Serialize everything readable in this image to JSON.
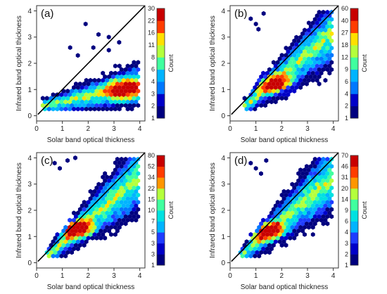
{
  "chart_data": [
    {
      "type": "heatmap",
      "panel_label": "(a)",
      "xlabel": "Solar band optical thickness",
      "ylabel": "Infrared band optical thickness",
      "xlim": [
        0,
        4.2
      ],
      "ylim": [
        -0.2,
        4.2
      ],
      "xticks": [
        0,
        1,
        2,
        3,
        4
      ],
      "yticks": [
        0,
        1,
        2,
        3,
        4
      ],
      "colorbar_title": "Count",
      "colorbar_ticks": [
        "1",
        "2",
        "3",
        "4",
        "6",
        "8",
        "11",
        "16",
        "22",
        "30"
      ],
      "x_range": [
        0.2,
        4.0
      ],
      "band_slope": 0.22,
      "band_intercept": 0.3,
      "band_width": [
        0.25,
        0.85
      ],
      "hot_center": [
        3.4,
        1.0
      ],
      "outliers": [
        [
          1.9,
          3.5
        ],
        [
          2.4,
          3.1
        ],
        [
          2.8,
          3.0
        ],
        [
          1.3,
          2.6
        ],
        [
          2.2,
          2.6
        ],
        [
          3.2,
          2.8
        ],
        [
          1.6,
          2.3
        ],
        [
          2.8,
          2.5
        ]
      ],
      "grid": false,
      "legend": "right"
    },
    {
      "type": "heatmap",
      "panel_label": "(b)",
      "xlabel": "Solar band optical thickness",
      "ylabel": "Infrared band optical thickness",
      "xlim": [
        0,
        4.2
      ],
      "ylim": [
        -0.2,
        4.2
      ],
      "xticks": [
        0,
        1,
        2,
        3,
        4
      ],
      "yticks": [
        0,
        1,
        2,
        3,
        4
      ],
      "colorbar_title": "Count",
      "colorbar_ticks": [
        "1",
        "2",
        "4",
        "6",
        "9",
        "12",
        "18",
        "27",
        "40",
        "60"
      ],
      "x_range": [
        0.5,
        4.0
      ],
      "band_slope": 0.82,
      "band_intercept": -0.1,
      "band_width": [
        0.3,
        1.3
      ],
      "hot_center": [
        1.8,
        1.2
      ],
      "outliers": [
        [
          0.8,
          3.7
        ],
        [
          1.0,
          3.5
        ],
        [
          1.1,
          3.3
        ],
        [
          1.3,
          3.9
        ]
      ],
      "grid": false,
      "legend": "right"
    },
    {
      "type": "heatmap",
      "panel_label": "(c)",
      "xlabel": "Solar band optical thickness",
      "ylabel": "Infrared band optical thickness",
      "xlim": [
        0,
        4.2
      ],
      "ylim": [
        -0.2,
        4.2
      ],
      "xticks": [
        0,
        1,
        2,
        3,
        4
      ],
      "yticks": [
        0,
        1,
        2,
        3,
        4
      ],
      "colorbar_title": "Count",
      "colorbar_ticks": [
        "1",
        "3",
        "3",
        "5",
        "7",
        "10",
        "15",
        "22",
        "34",
        "52",
        "80"
      ],
      "x_range": [
        0.4,
        4.0
      ],
      "band_slope": 0.85,
      "band_intercept": -0.1,
      "band_width": [
        0.3,
        1.4
      ],
      "hot_center": [
        1.5,
        1.3
      ],
      "outliers": [
        [
          0.7,
          3.8
        ],
        [
          0.9,
          3.6
        ],
        [
          1.2,
          3.9
        ],
        [
          1.5,
          4.0
        ]
      ],
      "grid": false,
      "legend": "right"
    },
    {
      "type": "heatmap",
      "panel_label": "(d)",
      "xlabel": "Solar band optical thickness",
      "ylabel": "Infrared band optical thickness",
      "xlim": [
        0,
        4.2
      ],
      "ylim": [
        -0.2,
        4.2
      ],
      "xticks": [
        0,
        1,
        2,
        3,
        4
      ],
      "yticks": [
        0,
        1,
        2,
        3,
        4
      ],
      "colorbar_title": "Count",
      "colorbar_ticks": [
        "1",
        "2",
        "3",
        "4",
        "6",
        "9",
        "14",
        "20",
        "31",
        "46",
        "70"
      ],
      "x_range": [
        0.4,
        4.0
      ],
      "band_slope": 0.85,
      "band_intercept": -0.1,
      "band_width": [
        0.3,
        1.4
      ],
      "hot_center": [
        1.4,
        1.2
      ],
      "outliers": [
        [
          0.8,
          3.8
        ],
        [
          1.0,
          3.6
        ],
        [
          1.2,
          3.4
        ],
        [
          1.4,
          3.9
        ]
      ],
      "grid": false,
      "legend": "right"
    }
  ],
  "colors": {
    "palette": [
      "#00007f",
      "#0000c8",
      "#1e3cff",
      "#0078ff",
      "#00b4ff",
      "#00e1e1",
      "#40ff9f",
      "#b4ff3c",
      "#ffe000",
      "#ff9600",
      "#ff3c00",
      "#c80000"
    ],
    "diagonal": "#000000",
    "frame": "#333333"
  }
}
